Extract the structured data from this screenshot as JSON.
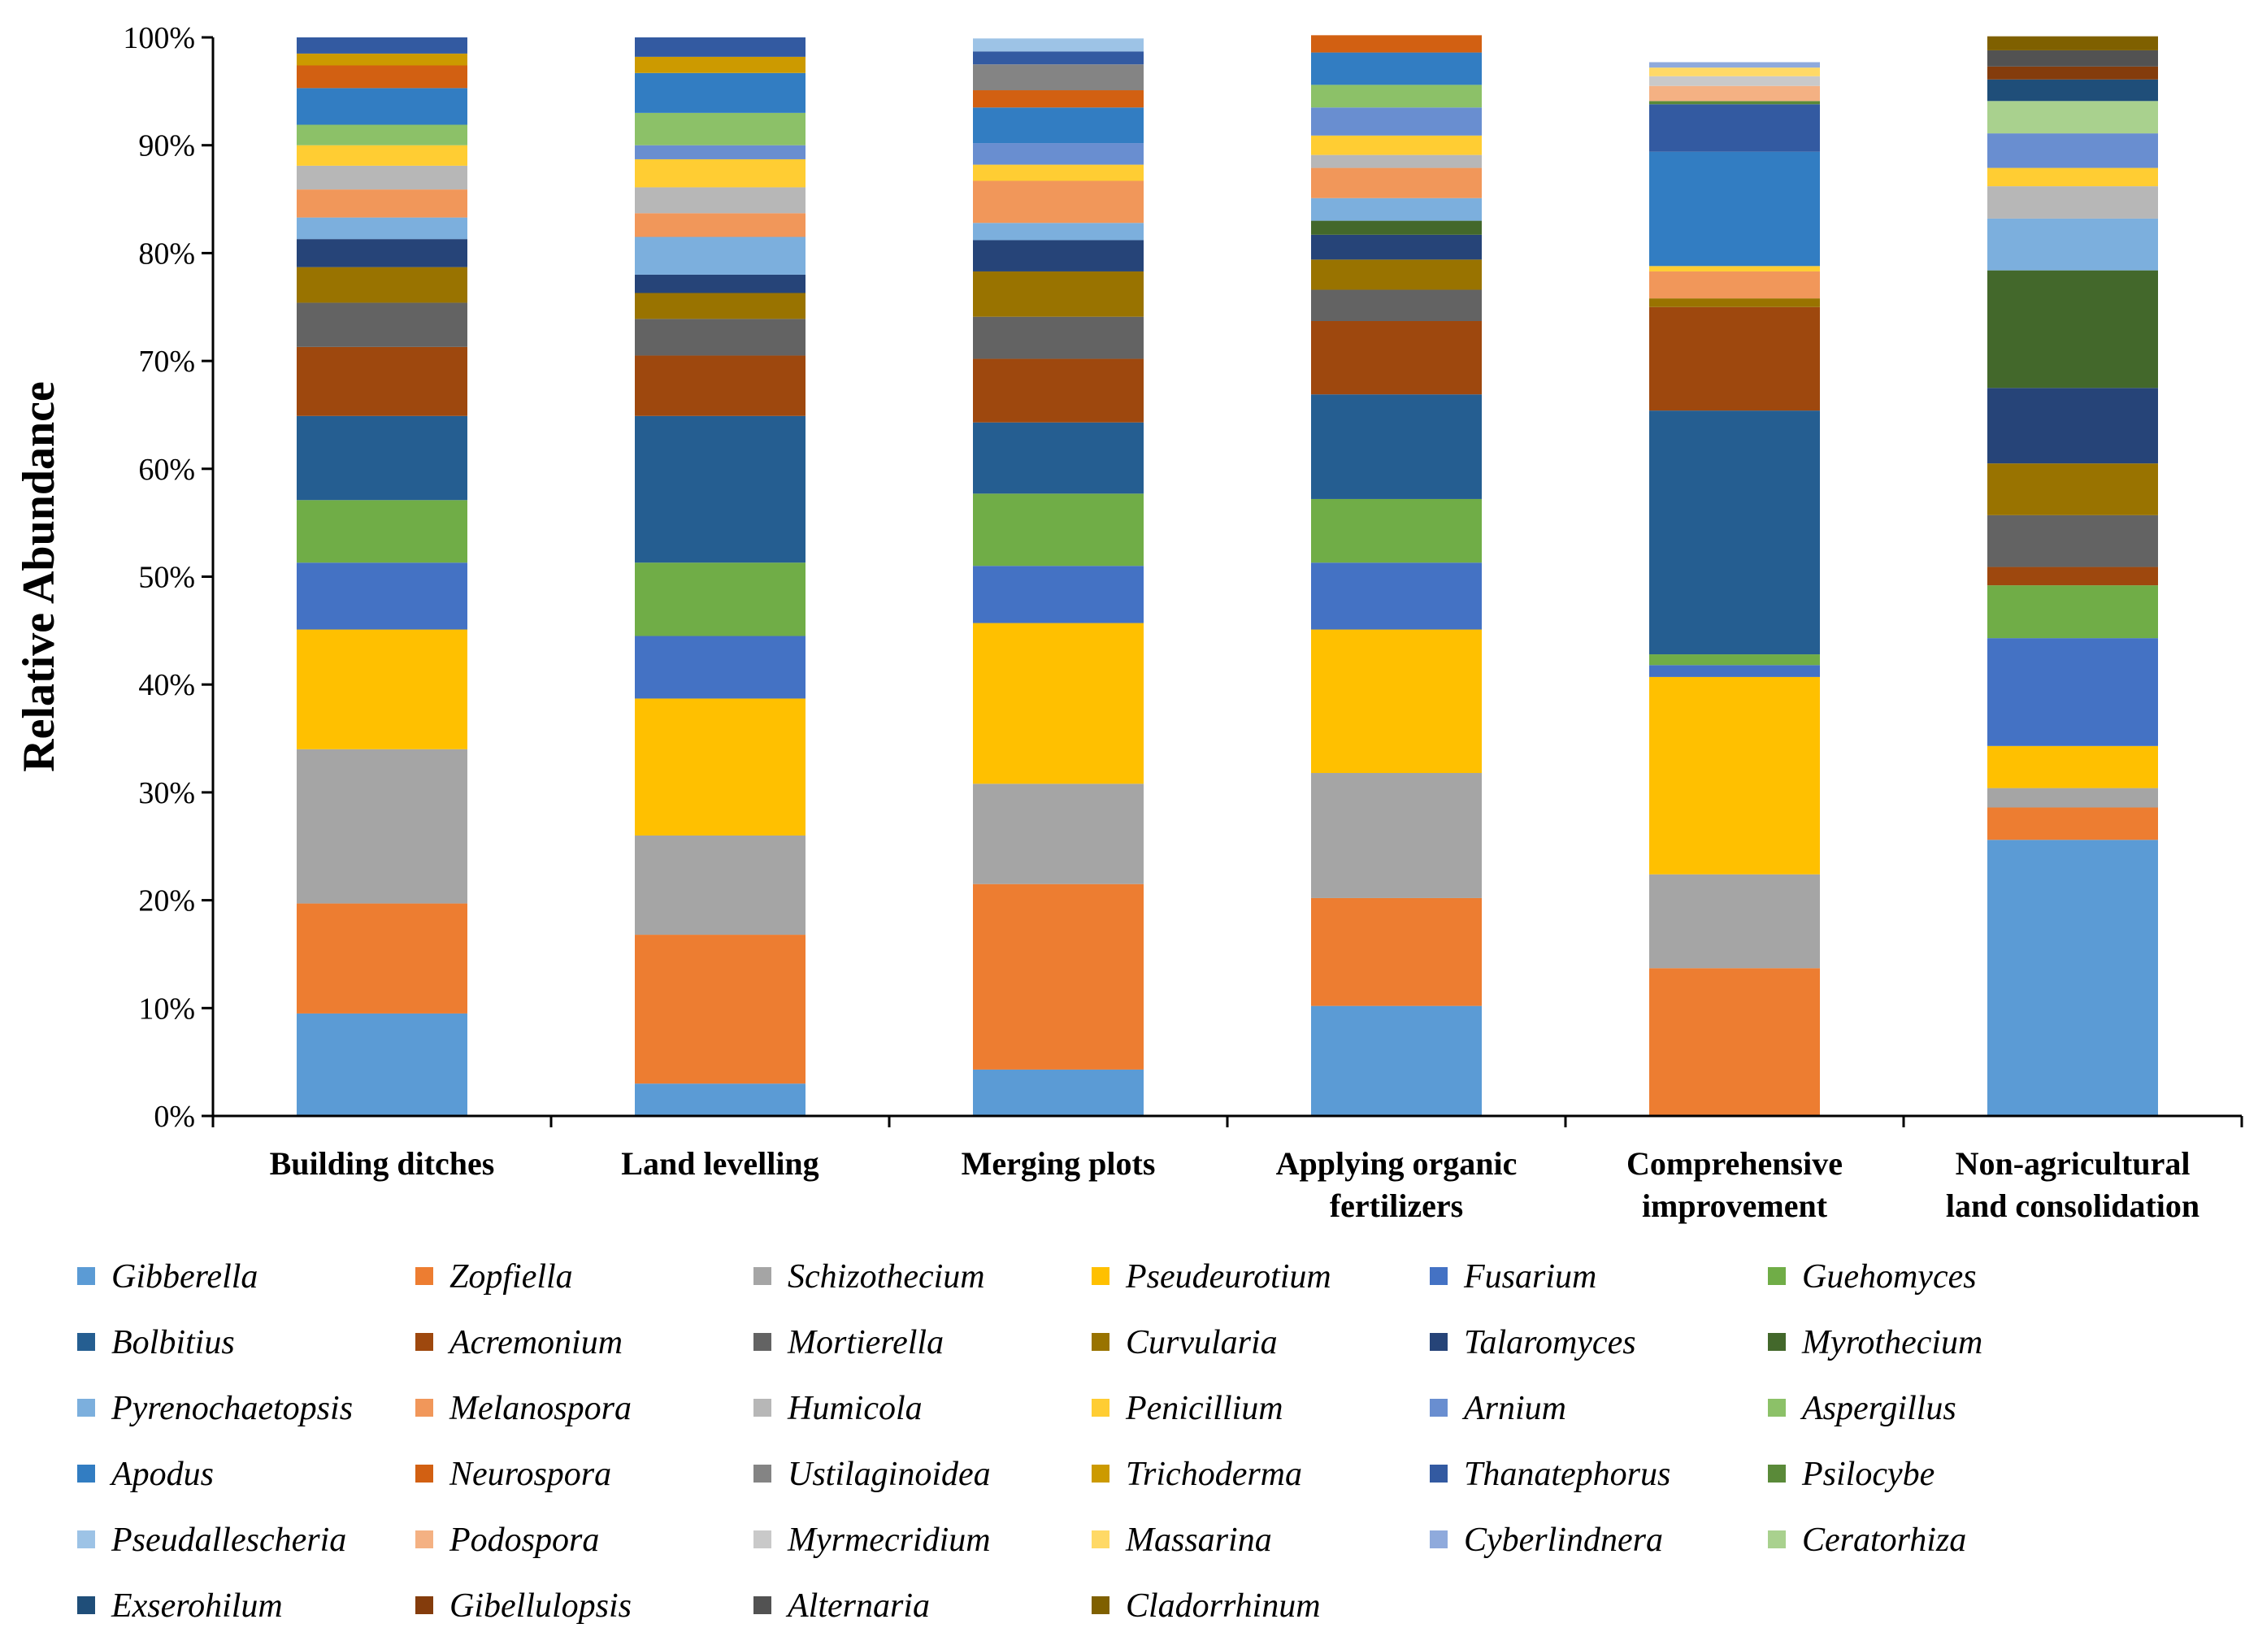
{
  "chart_data": {
    "type": "bar",
    "stacked": true,
    "ylabel": "Relative Abundance",
    "xlabel": "",
    "ylim": [
      0,
      100
    ],
    "yticks": [
      "0%",
      "10%",
      "20%",
      "30%",
      "40%",
      "50%",
      "60%",
      "70%",
      "80%",
      "90%",
      "100%"
    ],
    "categories": [
      [
        "Building ditches"
      ],
      [
        "Land levelling"
      ],
      [
        "Merging plots"
      ],
      [
        "Applying organic",
        "fertilizers"
      ],
      [
        "Comprehensive",
        "improvement"
      ],
      [
        "Non-agricultural",
        "land consolidation"
      ]
    ],
    "legend_position": "bottom",
    "series": [
      {
        "name": "Gibberella",
        "color": "#5b9bd5",
        "values": [
          9.5,
          3.0,
          4.3,
          10.2,
          0.0,
          25.6
        ]
      },
      {
        "name": "Zopfiella",
        "color": "#ed7d31",
        "values": [
          10.2,
          13.8,
          17.2,
          10.0,
          13.7,
          3.0
        ]
      },
      {
        "name": "Schizothecium",
        "color": "#a5a5a5",
        "values": [
          14.3,
          9.2,
          9.3,
          11.6,
          8.7,
          1.8
        ]
      },
      {
        "name": "Pseudeurotium",
        "color": "#ffc000",
        "values": [
          11.1,
          12.7,
          14.9,
          13.3,
          18.3,
          3.9
        ]
      },
      {
        "name": "Fusarium",
        "color": "#4472c4",
        "values": [
          6.2,
          5.8,
          5.3,
          6.2,
          1.1,
          10.0
        ]
      },
      {
        "name": "Guehomyces",
        "color": "#70ad47",
        "values": [
          5.8,
          6.8,
          6.7,
          5.9,
          1.0,
          4.9
        ]
      },
      {
        "name": "Bolbitius",
        "color": "#255e91",
        "values": [
          7.8,
          13.6,
          6.6,
          9.7,
          22.6,
          0.0
        ]
      },
      {
        "name": "Acremonium",
        "color": "#9e480e",
        "values": [
          6.4,
          5.6,
          5.9,
          6.8,
          9.6,
          1.7
        ]
      },
      {
        "name": "Mortierella",
        "color": "#636363",
        "values": [
          4.1,
          3.4,
          3.9,
          2.9,
          0.0,
          4.8
        ]
      },
      {
        "name": "Curvularia",
        "color": "#997300",
        "values": [
          3.3,
          2.4,
          4.2,
          2.8,
          0.8,
          4.8
        ]
      },
      {
        "name": "Talaromyces",
        "color": "#264478",
        "values": [
          2.6,
          1.7,
          2.9,
          2.3,
          0.0,
          7.0
        ]
      },
      {
        "name": "Myrothecium",
        "color": "#43682b",
        "values": [
          0.0,
          0.0,
          0.0,
          1.3,
          0.0,
          10.9
        ]
      },
      {
        "name": "Pyrenochaetopsis",
        "color": "#7cafdd",
        "values": [
          2.0,
          3.5,
          1.6,
          2.1,
          0.0,
          4.8
        ]
      },
      {
        "name": "Melanospora",
        "color": "#f1975a",
        "values": [
          2.6,
          2.2,
          3.9,
          2.8,
          2.5,
          0.0
        ]
      },
      {
        "name": "Humicola",
        "color": "#b7b7b7",
        "values": [
          2.2,
          2.4,
          0.0,
          1.2,
          0.0,
          3.0
        ]
      },
      {
        "name": "Penicillium",
        "color": "#ffcd33",
        "values": [
          1.9,
          2.6,
          1.5,
          1.8,
          0.5,
          1.7
        ]
      },
      {
        "name": "Arnium",
        "color": "#698ed0",
        "values": [
          0.0,
          1.3,
          2.0,
          2.6,
          0.0,
          3.2
        ]
      },
      {
        "name": "Aspergillus",
        "color": "#8cc168",
        "values": [
          1.9,
          3.0,
          0.0,
          2.1,
          0.0,
          0.0
        ]
      },
      {
        "name": "Apodus",
        "color": "#327dc2",
        "values": [
          3.4,
          3.7,
          3.3,
          3.0,
          10.6,
          0.0
        ]
      },
      {
        "name": "Neurospora",
        "color": "#d26012",
        "values": [
          2.1,
          0.0,
          1.6,
          1.6,
          0.0,
          0.0
        ]
      },
      {
        "name": "Ustilaginoidea",
        "color": "#848484",
        "values": [
          0.0,
          0.0,
          2.4,
          0.0,
          0.0,
          0.0
        ]
      },
      {
        "name": "Trichoderma",
        "color": "#cc9a00",
        "values": [
          1.1,
          1.5,
          0.0,
          0.0,
          0.0,
          0.0
        ]
      },
      {
        "name": "Thanatephorus",
        "color": "#335aa1",
        "values": [
          1.5,
          1.8,
          1.2,
          0.0,
          4.4,
          0.0
        ]
      },
      {
        "name": "Psilocybe",
        "color": "#5a8a39",
        "values": [
          0.0,
          0.0,
          0.0,
          0.0,
          0.3,
          0.0
        ]
      },
      {
        "name": "Pseudallescheria",
        "color": "#9dc3e6",
        "values": [
          0.0,
          0.0,
          1.2,
          0.0,
          0.0,
          0.0
        ]
      },
      {
        "name": "Podospora",
        "color": "#f4b183",
        "values": [
          0.0,
          0.0,
          0.0,
          0.0,
          1.4,
          0.0
        ]
      },
      {
        "name": "Myrmecridium",
        "color": "#c9c9c9",
        "values": [
          0.0,
          0.0,
          0.0,
          0.0,
          0.9,
          0.0
        ]
      },
      {
        "name": "Massarina",
        "color": "#ffd966",
        "values": [
          0.0,
          0.0,
          0.0,
          0.0,
          0.8,
          0.0
        ]
      },
      {
        "name": "Cyberlindnera",
        "color": "#8faadc",
        "values": [
          0.0,
          0.0,
          0.0,
          0.0,
          0.5,
          0.0
        ]
      },
      {
        "name": "Ceratorhiza",
        "color": "#a9d18e",
        "values": [
          0.0,
          0.0,
          0.0,
          0.0,
          0.0,
          3.0
        ]
      },
      {
        "name": "Exserohilum",
        "color": "#1f4e79",
        "values": [
          0.0,
          0.0,
          0.0,
          0.0,
          0.0,
          2.0
        ]
      },
      {
        "name": "Gibellulopsis",
        "color": "#843c0c",
        "values": [
          0.0,
          0.0,
          0.0,
          0.0,
          0.0,
          1.2
        ]
      },
      {
        "name": "Alternaria",
        "color": "#525252",
        "values": [
          0.0,
          0.0,
          0.0,
          0.0,
          0.0,
          1.5
        ]
      },
      {
        "name": "Cladorrhinum",
        "color": "#7f6000",
        "values": [
          0.0,
          0.0,
          0.0,
          0.0,
          0.0,
          1.3
        ]
      }
    ]
  }
}
